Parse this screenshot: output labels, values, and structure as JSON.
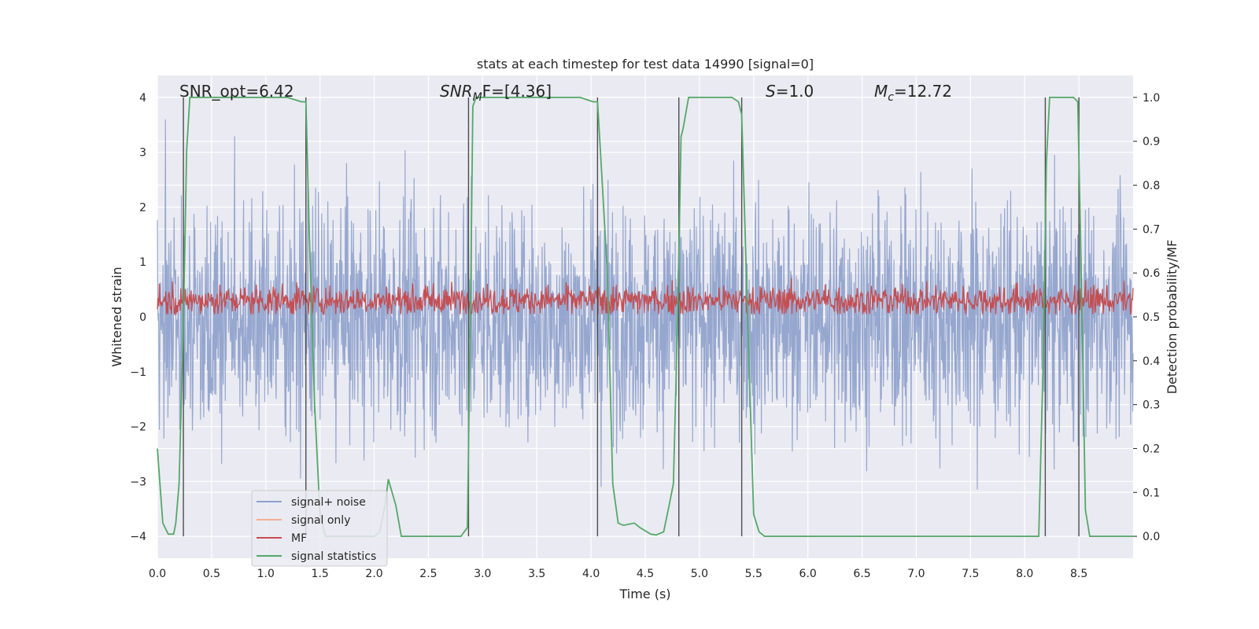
{
  "chart_data": {
    "type": "line",
    "title": "stats at each timestep for test data 14990 [signal=0]",
    "xlabel": "Time (s)",
    "ylabel_left": "Whitened strain",
    "ylabel_right": "Detection probability/MF",
    "xlim": [
      0,
      9.0
    ],
    "ylim_left": [
      -4.4,
      4.4
    ],
    "ylim_right": [
      -0.05,
      1.05
    ],
    "x_ticks": [
      "0.0",
      "0.5",
      "1.0",
      "1.5",
      "2.0",
      "2.5",
      "3.0",
      "3.5",
      "4.0",
      "4.5",
      "5.0",
      "5.5",
      "6.0",
      "6.5",
      "7.0",
      "7.5",
      "8.0",
      "8.5"
    ],
    "y_left_ticks": [
      "4",
      "3",
      "2",
      "1",
      "0",
      "−1",
      "−2",
      "−3",
      "−4"
    ],
    "y_right_ticks": [
      "1.0",
      "0.9",
      "0.8",
      "0.7",
      "0.6",
      "0.5",
      "0.4",
      "0.3",
      "0.2",
      "0.1",
      "0.0"
    ],
    "grid": true,
    "annotations": {
      "snr_opt": "SNR_opt=6.42",
      "snr_mf_prefix": "SNR",
      "snr_mf_sub": "M",
      "snr_mf_suffix": "F=[4.36]",
      "s_label": "S",
      "s_value": "=1.0",
      "mc_label": "M",
      "mc_sub": "c",
      "mc_value": "=12.72"
    },
    "vertical_lines_x": [
      0.24,
      1.37,
      2.87,
      4.06,
      4.81,
      5.39,
      8.19,
      8.5
    ],
    "noise_envelope": {
      "min": -3.5,
      "max": 3.6
    },
    "mf_range": [
      0.05,
      0.85
    ],
    "signal_statistics": {
      "x": [
        0.0,
        0.05,
        0.1,
        0.15,
        0.17,
        0.2,
        0.24,
        0.27,
        0.3,
        0.33,
        0.4,
        1.2,
        1.33,
        1.37,
        1.4,
        1.45,
        1.5,
        1.55,
        1.6,
        1.62,
        1.7,
        1.8,
        1.9,
        2.0,
        2.05,
        2.1,
        2.13,
        2.2,
        2.25,
        2.3,
        2.5,
        2.8,
        2.86,
        2.89,
        2.91,
        2.94,
        3.0,
        3.9,
        4.02,
        4.06,
        4.1,
        4.15,
        4.2,
        4.25,
        4.3,
        4.4,
        4.45,
        4.55,
        4.6,
        4.67,
        4.72,
        4.76,
        4.8,
        4.83,
        4.85,
        4.9,
        4.95,
        5.3,
        5.36,
        5.39,
        5.45,
        5.5,
        5.55,
        5.6,
        5.8,
        6.5,
        7.5,
        8.13,
        8.17,
        8.2,
        8.23,
        8.26,
        8.45,
        8.49,
        8.52,
        8.56,
        8.6,
        8.66,
        8.75,
        9.0
      ],
      "y": [
        0.2,
        0.03,
        0.005,
        0.005,
        0.03,
        0.12,
        0.49,
        0.88,
        1.0,
        1.0,
        1.0,
        1.0,
        0.99,
        0.99,
        0.7,
        0.3,
        0.05,
        0.0,
        0.0,
        0.0,
        0.0,
        0.0,
        0.0,
        0.0,
        0.01,
        0.07,
        0.13,
        0.07,
        0.0,
        0.0,
        0.0,
        0.0,
        0.02,
        0.56,
        0.98,
        1.0,
        1.0,
        1.0,
        0.99,
        0.99,
        0.82,
        0.6,
        0.12,
        0.03,
        0.025,
        0.03,
        0.02,
        0.005,
        0.003,
        0.01,
        0.07,
        0.12,
        0.51,
        0.91,
        0.93,
        1.0,
        1.0,
        1.0,
        0.99,
        0.96,
        0.45,
        0.05,
        0.01,
        0.0,
        0.0,
        0.0,
        0.0,
        0.0,
        0.39,
        0.85,
        1.0,
        1.0,
        1.0,
        0.99,
        0.62,
        0.06,
        0.0,
        0.0,
        0.0,
        0.0
      ]
    },
    "legend": [
      "signal+ noise",
      "signal only",
      "MF",
      "signal statistics"
    ],
    "legend_position": "lower-left",
    "colors": {
      "background": "#eaeaf2",
      "grid": "#ffffff",
      "noise": "#8da0cb",
      "signal_only": "#f3b08f",
      "mf": "#c44e52",
      "statistics": "#55a868",
      "vline": "#4d4d4d"
    }
  }
}
